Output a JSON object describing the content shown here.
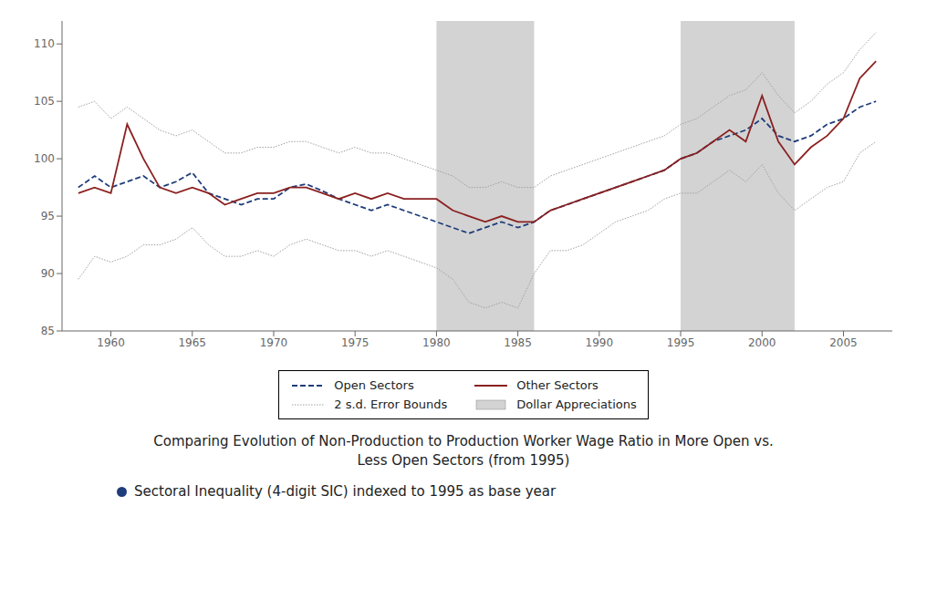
{
  "chart_data": {
    "type": "line",
    "title": "Comparing Evolution of Non-Production to Production Worker Wage Ratio in More Open vs. Less Open Sectors (from 1995)",
    "subtitle": "Sectoral Inequality (4-digit SIC) indexed to 1995 as base year",
    "x": [
      1958,
      1959,
      1960,
      1961,
      1962,
      1963,
      1964,
      1965,
      1966,
      1967,
      1968,
      1969,
      1970,
      1971,
      1972,
      1973,
      1974,
      1975,
      1976,
      1977,
      1978,
      1979,
      1980,
      1981,
      1982,
      1983,
      1984,
      1985,
      1986,
      1987,
      1988,
      1989,
      1990,
      1991,
      1992,
      1993,
      1994,
      1995,
      1996,
      1997,
      1998,
      1999,
      2000,
      2001,
      2002,
      2003,
      2004,
      2005,
      2006,
      2007
    ],
    "series": [
      {
        "name": "Open Sectors",
        "color": "#1f3d7a",
        "line_style": "dashed",
        "values": [
          97.5,
          98.5,
          97.5,
          98.0,
          98.5,
          97.5,
          98.0,
          98.8,
          97.0,
          96.5,
          96.0,
          96.5,
          96.5,
          97.5,
          97.8,
          97.2,
          96.5,
          96.0,
          95.5,
          96.0,
          95.5,
          95.0,
          94.5,
          94.0,
          93.5,
          94.0,
          94.5,
          94.0,
          94.5,
          95.5,
          96.0,
          96.5,
          97.0,
          97.5,
          98.0,
          98.5,
          99.0,
          100.0,
          100.5,
          101.5,
          102.0,
          102.5,
          103.5,
          102.0,
          101.5,
          102.0,
          103.0,
          103.5,
          104.5,
          105.0
        ]
      },
      {
        "name": "Other Sectors",
        "color": "#8b2020",
        "line_style": "solid",
        "values": [
          97.0,
          97.5,
          97.0,
          103.0,
          100.0,
          97.5,
          97.0,
          97.5,
          97.0,
          96.0,
          96.5,
          97.0,
          97.0,
          97.5,
          97.5,
          97.0,
          96.5,
          97.0,
          96.5,
          97.0,
          96.5,
          96.5,
          96.5,
          95.5,
          95.0,
          94.5,
          95.0,
          94.5,
          94.5,
          95.5,
          96.0,
          96.5,
          97.0,
          97.5,
          98.0,
          98.5,
          99.0,
          100.0,
          100.5,
          101.5,
          102.5,
          101.5,
          105.5,
          101.5,
          99.5,
          101.0,
          102.0,
          103.5,
          107.0,
          108.5
        ]
      },
      {
        "name": "2 s.d. Error Bounds",
        "color": "#a0a0a0",
        "line_style": "dotted",
        "upper": [
          104.5,
          105.0,
          103.5,
          104.5,
          103.5,
          102.5,
          102.0,
          102.5,
          101.5,
          100.5,
          100.5,
          101.0,
          101.0,
          101.5,
          101.5,
          101.0,
          100.5,
          101.0,
          100.5,
          100.5,
          100.0,
          99.5,
          99.0,
          98.5,
          97.5,
          97.5,
          98.0,
          97.5,
          97.5,
          98.5,
          99.0,
          99.5,
          100.0,
          100.5,
          101.0,
          101.5,
          102.0,
          103.0,
          103.5,
          104.5,
          105.5,
          106.0,
          107.5,
          105.5,
          104.0,
          105.0,
          106.5,
          107.5,
          109.5,
          111.0
        ],
        "lower": [
          89.5,
          91.5,
          91.0,
          91.5,
          92.5,
          92.5,
          93.0,
          94.0,
          92.5,
          91.5,
          91.5,
          92.0,
          91.5,
          92.5,
          93.0,
          92.5,
          92.0,
          92.0,
          91.5,
          92.0,
          91.5,
          91.0,
          90.5,
          89.5,
          87.5,
          87.0,
          87.5,
          87.0,
          90.0,
          92.0,
          92.0,
          92.5,
          93.5,
          94.5,
          95.0,
          95.5,
          96.5,
          97.0,
          97.0,
          98.0,
          99.0,
          98.0,
          99.5,
          97.0,
          95.5,
          96.5,
          97.5,
          98.0,
          100.5,
          101.5
        ]
      }
    ],
    "shaded": {
      "name": "Dollar Appreciations",
      "color": "#d3d3d3",
      "ranges": [
        [
          1980,
          1986
        ],
        [
          1995,
          2002
        ]
      ]
    },
    "xlim": [
      1957,
      2008
    ],
    "xticks": [
      1960,
      1965,
      1970,
      1975,
      1980,
      1985,
      1990,
      1995,
      2000,
      2005
    ],
    "ylim": [
      85,
      112
    ],
    "yticks": [
      85,
      90,
      95,
      100,
      105,
      110
    ],
    "grid": false
  }
}
